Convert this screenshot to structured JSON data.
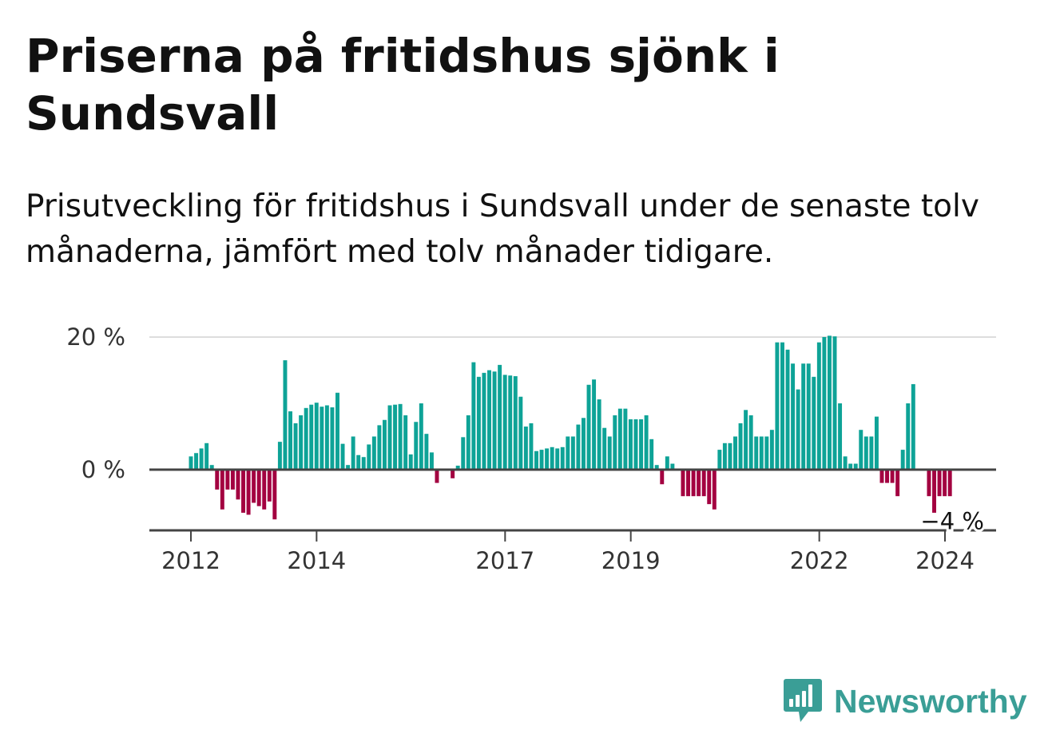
{
  "header": {
    "title": "Priserna på fritidshus sjönk i Sundsvall",
    "subtitle": "Prisutveckling för fritidshus i Sundsvall under de senaste tolv månaderna, jämfört med tolv månader tidigare."
  },
  "brand": {
    "name": "Newsworthy",
    "icon": "newsworthy-logo-icon",
    "color": "#3a9e96"
  },
  "colors": {
    "positive": "#0ea397",
    "negative": "#a30040",
    "zero_line": "#444444",
    "grid": "#dddddd"
  },
  "chart_data": {
    "type": "bar",
    "title": "Priserna på fritidshus sjönk i Sundsvall",
    "xlabel": "",
    "ylabel": "",
    "ylim": [
      -9,
      20
    ],
    "y_ticks": [
      {
        "value": 0,
        "label": "0 %"
      },
      {
        "value": 20,
        "label": "20 %"
      }
    ],
    "x_ticks": [
      {
        "value": 2012.0,
        "label": "2012"
      },
      {
        "value": 2014.0,
        "label": "2014"
      },
      {
        "value": 2017.0,
        "label": "2017"
      },
      {
        "value": 2019.0,
        "label": "2019"
      },
      {
        "value": 2022.0,
        "label": "2022"
      },
      {
        "value": 2024.0,
        "label": "2024"
      }
    ],
    "x_start": 2012.0,
    "x_step": 0.0833,
    "grid": true,
    "last_value_label": "−4 %",
    "values": [
      2,
      2.5,
      3.2,
      4,
      0.7,
      -3,
      -6,
      -3,
      -3,
      -4.5,
      -6.5,
      -6.8,
      -5,
      -5.5,
      -6,
      -4.8,
      -7.5,
      4.2,
      16.5,
      8.8,
      7,
      8.2,
      9.3,
      9.8,
      10.1,
      9.5,
      9.7,
      9.4,
      11.6,
      3.9,
      0.7,
      5,
      2.2,
      1.9,
      3.8,
      5,
      6.7,
      7.5,
      9.7,
      9.8,
      9.9,
      8.2,
      2.3,
      7.2,
      10,
      5.4,
      2.6,
      -2,
      null,
      null,
      -1.3,
      0.6,
      4.9,
      8.2,
      16.2,
      14,
      14.6,
      15,
      14.8,
      15.8,
      14.3,
      14.2,
      14.1,
      11,
      6.5,
      7,
      2.8,
      3,
      3.2,
      3.4,
      3.2,
      3.4,
      5,
      5,
      6.8,
      7.8,
      12.8,
      13.6,
      10.6,
      6.3,
      5,
      8.2,
      9.2,
      9.2,
      7.6,
      7.6,
      7.6,
      8.2,
      4.6,
      0.7,
      -2.2,
      2,
      0.9,
      null,
      -4,
      -4,
      -4,
      -4,
      -4,
      -5.2,
      -6,
      3,
      4,
      4,
      5,
      7,
      9,
      8.2,
      5,
      5,
      5,
      6,
      19.2,
      19.2,
      18.1,
      16,
      12.1,
      16,
      16,
      14,
      19.2,
      20,
      20.2,
      20.1,
      10,
      2,
      0.9,
      0.9,
      6,
      5,
      5,
      8,
      -2,
      -2,
      -2,
      -4,
      3,
      10,
      12.9,
      null,
      null,
      -4,
      -6.5,
      -4,
      -4,
      -4
    ]
  }
}
